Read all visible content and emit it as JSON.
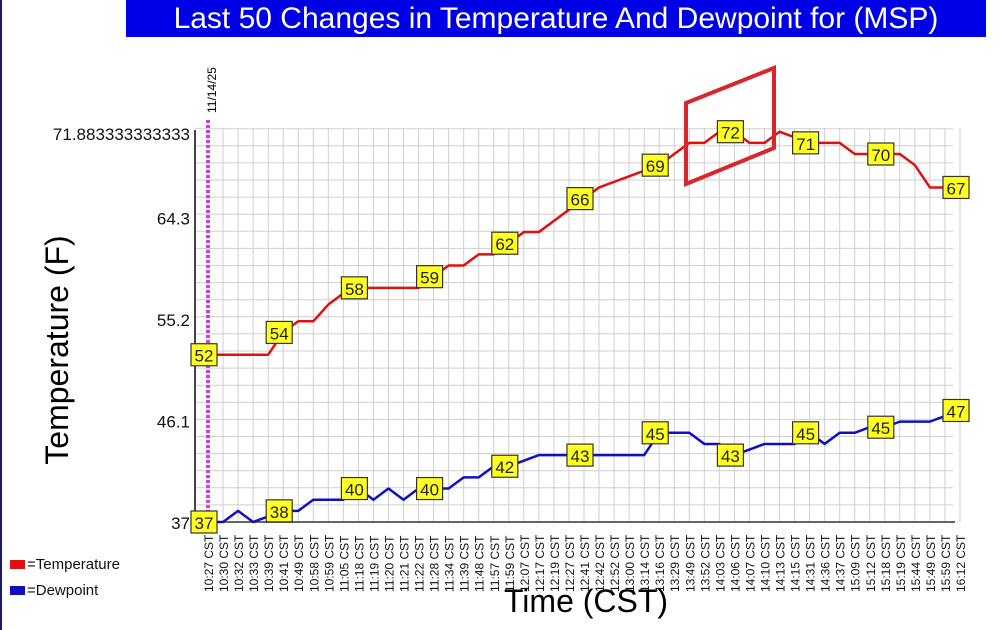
{
  "chart_data": {
    "type": "line",
    "title": "Last 50 Changes in Temperature And Dewpoint for (MSP)",
    "xlabel": "Time (CST)",
    "ylabel": "Temperature (F)",
    "date_marker": "11/14/25",
    "ylim": [
      37,
      71.883333333333
    ],
    "yticks": [
      "37",
      "46.1",
      "55.2",
      "64.3",
      "71.883333333333"
    ],
    "grid": true,
    "legend_position": "bottom-left",
    "categories": [
      "10:27 CST",
      "10:30 CST",
      "10:32 CST",
      "10:33 CST",
      "10:39 CST",
      "10:41 CST",
      "10:49 CST",
      "10:58 CST",
      "10:59 CST",
      "11:05 CST",
      "11:18 CST",
      "11:19 CST",
      "11:20 CST",
      "11:21 CST",
      "11:22 CST",
      "11:28 CST",
      "11:34 CST",
      "11:39 CST",
      "11:48 CST",
      "11:57 CST",
      "11:59 CST",
      "12:07 CST",
      "12:17 CST",
      "12:19 CST",
      "12:27 CST",
      "12:41 CST",
      "12:42 CST",
      "12:52 CST",
      "13:00 CST",
      "13:14 CST",
      "13:16 CST",
      "13:29 CST",
      "13:49 CST",
      "13:52 CST",
      "14:03 CST",
      "14:06 CST",
      "14:07 CST",
      "14:10 CST",
      "14:13 CST",
      "14:15 CST",
      "14:31 CST",
      "14:36 CST",
      "14:37 CST",
      "15:09 CST",
      "15:12 CST",
      "15:18 CST",
      "15:19 CST",
      "15:44 CST",
      "15:49 CST",
      "15:59 CST",
      "16:12 CST"
    ],
    "series": [
      {
        "name": "=Temperature",
        "color": "#e01010",
        "values": [
          52,
          52,
          52,
          52,
          52,
          54,
          55,
          55,
          56.5,
          57.5,
          58,
          58,
          58,
          58,
          58,
          59,
          60,
          60,
          61,
          61,
          62,
          63,
          63,
          64,
          65,
          66,
          67,
          67.5,
          68,
          68.5,
          69,
          70,
          71,
          71,
          72,
          72,
          71,
          71,
          72,
          71.5,
          71,
          71,
          71,
          70,
          70,
          70,
          70,
          69,
          67,
          67,
          67
        ],
        "labels": {
          "0": "52",
          "5": "54",
          "10": "58",
          "15": "59",
          "20": "62",
          "25": "66",
          "30": "69",
          "35": "72",
          "40": "71",
          "45": "70",
          "50": "67"
        }
      },
      {
        "name": "=Dewpoint",
        "color": "#1010c0",
        "values": [
          37,
          37,
          38,
          37,
          37.5,
          38,
          38,
          39,
          39,
          39,
          40,
          39,
          40,
          39,
          40,
          40,
          40,
          41,
          41,
          42,
          42,
          42.5,
          43,
          43,
          43,
          43,
          43,
          43,
          43,
          43,
          45,
          45,
          45,
          44,
          44,
          43,
          43.5,
          44,
          44,
          44,
          45,
          44,
          45,
          45,
          45.5,
          45.5,
          46,
          46,
          46,
          46.5,
          47
        ],
        "labels": {
          "0": "37",
          "5": "38",
          "10": "40",
          "15": "40",
          "20": "42",
          "25": "43",
          "30": "45",
          "35": "43",
          "40": "45",
          "45": "45",
          "50": "47"
        }
      }
    ],
    "annotation_color": "#d9262b"
  }
}
